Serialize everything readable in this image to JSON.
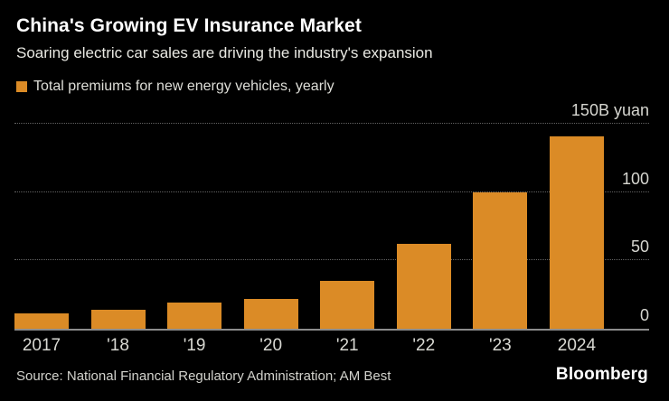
{
  "header": {
    "title": "China's Growing EV Insurance Market",
    "subtitle": "Soaring electric car sales are driving the industry's expansion"
  },
  "legend": {
    "label": "Total premiums for new energy vehicles, yearly"
  },
  "chart_data": {
    "type": "bar",
    "categories": [
      "2017",
      "'18",
      "'19",
      "'20",
      "'21",
      "'22",
      "'23",
      "2024"
    ],
    "values": [
      11,
      14,
      19,
      22,
      35,
      62,
      100,
      141
    ],
    "title": "China's Growing EV Insurance Market",
    "xlabel": "",
    "ylabel": "150B yuan",
    "ylim": [
      0,
      150
    ],
    "yticks": [
      0,
      50,
      100,
      150
    ],
    "ytick_labels": [
      "0",
      "50",
      "100",
      "150B yuan"
    ],
    "value_axis_side": "right",
    "grid": "horizontal-dotted",
    "legend_position": "top-left",
    "bar_color": "#DB8B26"
  },
  "footer": {
    "source": "Source: National Financial Regulatory Administration; AM Best",
    "brand": "Bloomberg"
  },
  "colors": {
    "background": "#000000",
    "accent_orange": "#DB8B26",
    "title_text": "#FFFFFF",
    "subtitle_text": "#E9E9E3",
    "axis_text": "#D6D6D0",
    "gridline": "#636363",
    "baseline": "#8C8C8C"
  }
}
